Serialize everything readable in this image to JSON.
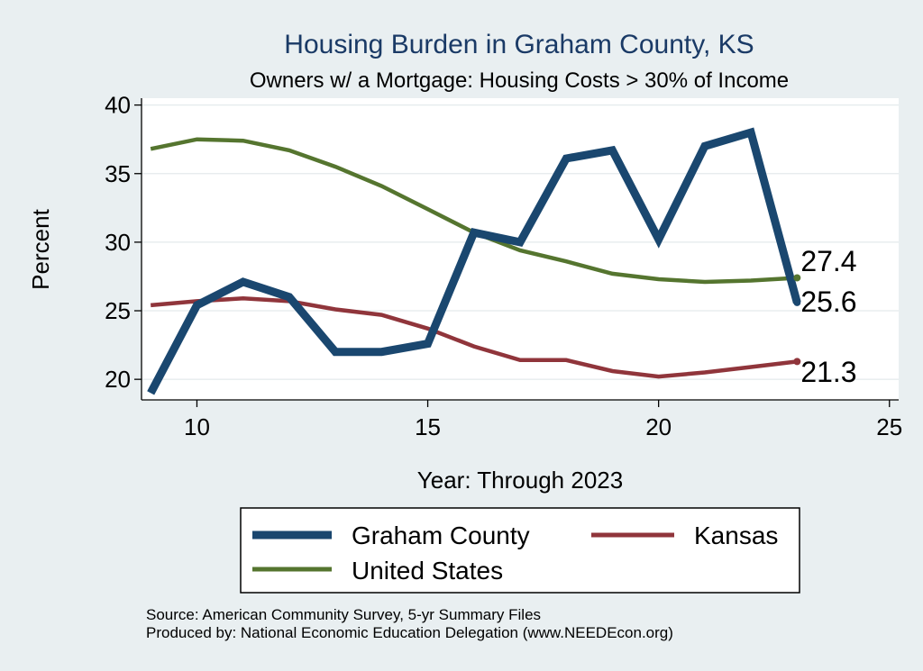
{
  "chart_data": {
    "type": "line",
    "title": "Housing Burden in Graham County, KS",
    "subtitle": "Owners w/ a Mortgage: Housing Costs > 30% of Income",
    "xlabel": "Year: Through 2023",
    "ylabel": "Percent",
    "xlim": [
      8.8,
      25.2
    ],
    "ylim": [
      18.5,
      40.5
    ],
    "xticks": [
      10,
      15,
      20,
      25
    ],
    "yticks": [
      20,
      25,
      30,
      35,
      40
    ],
    "grid": true,
    "legend_position": "bottom",
    "x": [
      9,
      10,
      11,
      12,
      13,
      14,
      15,
      16,
      17,
      18,
      19,
      20,
      21,
      22,
      23
    ],
    "series": [
      {
        "name": "Graham County",
        "color": "#1a476f",
        "values": [
          19.0,
          25.4,
          27.1,
          26.0,
          22.0,
          22.0,
          22.6,
          30.7,
          30.0,
          36.1,
          36.7,
          30.2,
          37.0,
          38.0,
          25.6
        ],
        "end_label": "25.6"
      },
      {
        "name": "Kansas",
        "color": "#90353b",
        "values": [
          25.4,
          25.7,
          25.9,
          25.7,
          25.1,
          24.7,
          23.7,
          22.4,
          21.4,
          21.4,
          20.6,
          20.2,
          20.5,
          20.9,
          21.3
        ],
        "end_label": "21.3"
      },
      {
        "name": "United States",
        "color": "#55752f",
        "values": [
          36.8,
          37.5,
          37.4,
          36.7,
          35.5,
          34.1,
          32.4,
          30.7,
          29.4,
          28.6,
          27.7,
          27.3,
          27.1,
          27.2,
          27.4
        ],
        "end_label": "27.4"
      }
    ],
    "notes": [
      "Source: American Community Survey, 5-yr Summary Files",
      "Produced by: National Economic Education Delegation (www.NEEDEcon.org)"
    ]
  }
}
